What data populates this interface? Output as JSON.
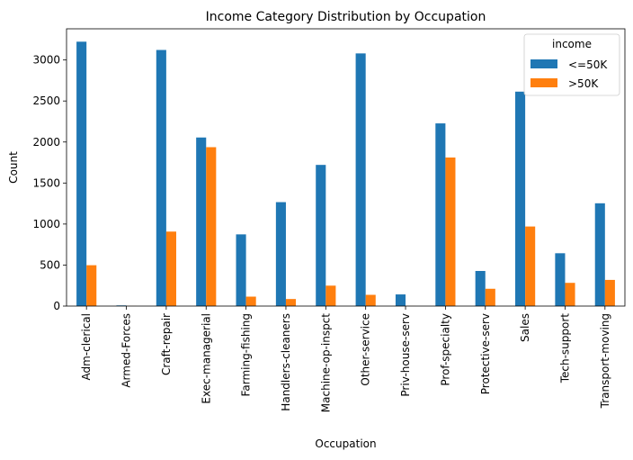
{
  "chart_data": {
    "type": "bar",
    "title": "Income Category Distribution by Occupation",
    "xlabel": "Occupation",
    "ylabel": "Count",
    "ylim": [
      0,
      3380
    ],
    "yticks": [
      0,
      500,
      1000,
      1500,
      2000,
      2500,
      3000
    ],
    "grid": false,
    "legend": {
      "title": "income",
      "placement": "top-right"
    },
    "categories": [
      "Adm-clerical",
      "Armed-Forces",
      "Craft-repair",
      "Exec-managerial",
      "Farming-fishing",
      "Handlers-cleaners",
      "Machine-op-inspct",
      "Other-service",
      "Priv-house-serv",
      "Prof-specialty",
      "Protective-serv",
      "Sales",
      "Tech-support",
      "Transport-moving"
    ],
    "series": [
      {
        "name": "<=50K",
        "color": "#1f77b4",
        "values": [
          3223,
          8,
          3122,
          2055,
          874,
          1267,
          1721,
          3080,
          142,
          2227,
          428,
          2614,
          644,
          1253
        ]
      },
      {
        "name": ">50K",
        "color": "#ff7f0e",
        "values": [
          498,
          1,
          908,
          1937,
          115,
          86,
          249,
          137,
          1,
          1811,
          211,
          970,
          283,
          319
        ]
      }
    ]
  }
}
